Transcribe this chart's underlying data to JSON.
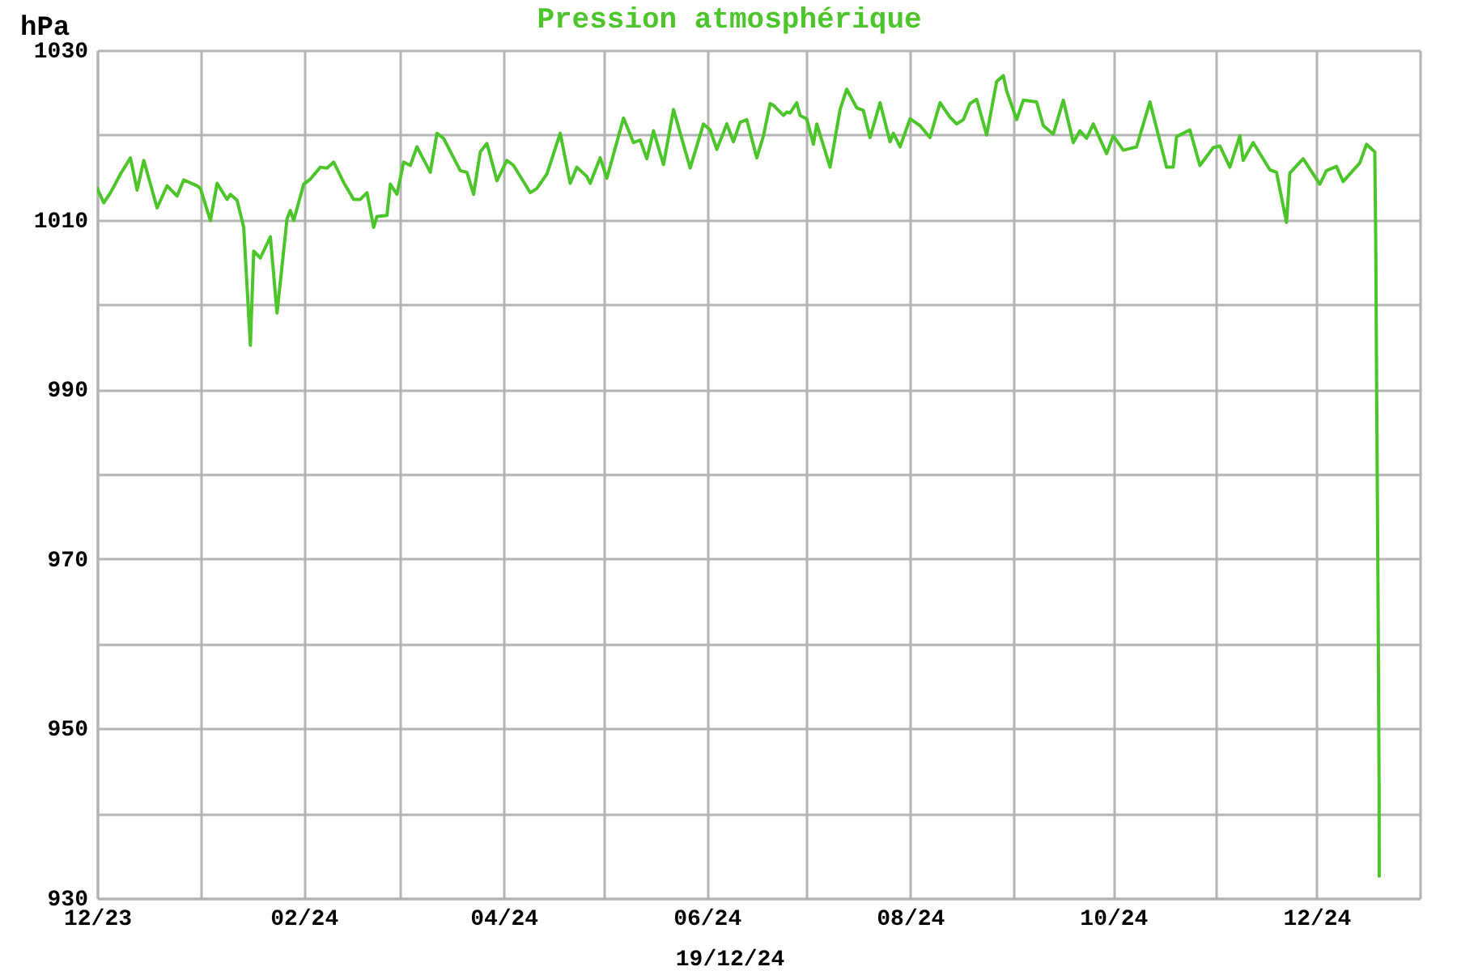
{
  "chart_data": {
    "type": "line",
    "title": "Pression atmosphérique",
    "ylabel": "hPa",
    "annotations": [
      "19/12/24"
    ],
    "x": [
      "2023-12-01",
      "2023-12-03",
      "2023-12-05",
      "2023-12-06",
      "2023-12-08",
      "2023-12-11",
      "2023-12-13",
      "2023-12-15",
      "2023-12-19",
      "2023-12-22",
      "2023-12-25",
      "2023-12-27",
      "2023-12-31",
      "2024-01-01",
      "2024-01-04",
      "2024-01-06",
      "2024-01-09",
      "2024-01-10",
      "2024-01-12",
      "2024-01-14",
      "2024-01-16",
      "2024-01-17",
      "2024-01-19",
      "2024-01-22",
      "2024-01-24",
      "2024-01-27",
      "2024-01-28",
      "2024-01-29",
      "2024-02-01",
      "2024-02-03",
      "2024-02-06",
      "2024-02-08",
      "2024-02-10",
      "2024-02-13",
      "2024-02-16",
      "2024-02-18",
      "2024-02-20",
      "2024-02-22",
      "2024-02-23",
      "2024-02-26",
      "2024-02-27",
      "2024-02-29",
      "2024-03-02",
      "2024-03-04",
      "2024-03-06",
      "2024-03-10",
      "2024-03-12",
      "2024-03-14",
      "2024-03-19",
      "2024-03-21",
      "2024-03-23",
      "2024-03-25",
      "2024-03-27",
      "2024-03-30",
      "2024-04-02",
      "2024-04-04",
      "2024-04-09",
      "2024-04-11",
      "2024-04-14",
      "2024-04-18",
      "2024-04-21",
      "2024-04-23",
      "2024-04-26",
      "2024-04-27",
      "2024-04-30",
      "2024-05-02",
      "2024-05-07",
      "2024-05-10",
      "2024-05-12",
      "2024-05-14",
      "2024-05-16",
      "2024-05-19",
      "2024-05-22",
      "2024-05-27",
      "2024-05-31",
      "2024-06-02",
      "2024-06-04",
      "2024-06-07",
      "2024-06-09",
      "2024-06-11",
      "2024-06-13",
      "2024-06-16",
      "2024-06-18",
      "2024-06-20",
      "2024-06-21",
      "2024-06-24",
      "2024-06-25",
      "2024-06-26",
      "2024-06-28",
      "2024-06-29",
      "2024-07-01",
      "2024-07-03",
      "2024-07-04",
      "2024-07-08",
      "2024-07-11",
      "2024-07-13",
      "2024-07-16",
      "2024-07-18",
      "2024-07-20",
      "2024-07-23",
      "2024-07-26",
      "2024-07-27",
      "2024-07-29",
      "2024-08-01",
      "2024-08-04",
      "2024-08-07",
      "2024-08-10",
      "2024-08-13",
      "2024-08-15",
      "2024-08-17",
      "2024-08-19",
      "2024-08-21",
      "2024-08-24",
      "2024-08-27",
      "2024-08-29",
      "2024-08-30",
      "2024-09-02",
      "2024-09-04",
      "2024-09-08",
      "2024-09-10",
      "2024-09-13",
      "2024-09-16",
      "2024-09-19",
      "2024-09-21",
      "2024-09-23",
      "2024-09-25",
      "2024-09-29",
      "2024-10-01",
      "2024-10-04",
      "2024-10-08",
      "2024-10-12",
      "2024-10-17",
      "2024-10-19",
      "2024-10-20",
      "2024-10-24",
      "2024-10-27",
      "2024-10-31",
      "2024-11-02",
      "2024-11-05",
      "2024-11-08",
      "2024-11-09",
      "2024-11-12",
      "2024-11-17",
      "2024-11-19",
      "2024-11-22",
      "2024-11-23",
      "2024-11-27",
      "2024-12-02",
      "2024-12-04",
      "2024-12-07",
      "2024-12-09",
      "2024-12-14",
      "2024-12-16",
      "2024-12-18T12:00",
      "2024-12-18T19:00",
      "2024-12-19T03:00",
      "2024-12-19T12:00",
      "2024-12-19T19:00",
      "2024-12-19T20:00"
    ],
    "series": [
      {
        "color": "#4cc52a",
        "values": [
          1013.7,
          1012.0,
          1013.2,
          1013.9,
          1015.4,
          1017.3,
          1013.5,
          1017.0,
          1011.4,
          1014.0,
          1012.8,
          1014.7,
          1014.0,
          1013.7,
          1009.9,
          1014.3,
          1012.4,
          1013.0,
          1012.3,
          1009.1,
          995.2,
          1006.3,
          1005.5,
          1008.0,
          999.0,
          1010.1,
          1011.1,
          1009.9,
          1014.2,
          1014.8,
          1016.2,
          1016.1,
          1016.8,
          1014.4,
          1012.4,
          1012.4,
          1013.2,
          1009.1,
          1010.4,
          1010.5,
          1014.2,
          1013.0,
          1016.8,
          1016.4,
          1018.6,
          1015.6,
          1020.2,
          1019.6,
          1015.8,
          1015.6,
          1013.0,
          1018.0,
          1019.0,
          1014.6,
          1017.0,
          1016.4,
          1013.2,
          1013.7,
          1015.4,
          1020.2,
          1014.3,
          1016.2,
          1015.1,
          1014.3,
          1017.3,
          1014.9,
          1022.0,
          1019.1,
          1019.4,
          1017.2,
          1020.5,
          1016.5,
          1023.0,
          1016.1,
          1021.3,
          1020.6,
          1018.3,
          1021.3,
          1019.2,
          1021.5,
          1021.8,
          1017.3,
          1019.9,
          1023.7,
          1023.5,
          1022.3,
          1022.7,
          1022.6,
          1023.8,
          1022.3,
          1021.9,
          1018.9,
          1021.3,
          1016.2,
          1023.0,
          1025.4,
          1023.2,
          1022.9,
          1019.7,
          1023.8,
          1019.2,
          1020.2,
          1018.6,
          1021.9,
          1021.1,
          1019.7,
          1023.8,
          1022.1,
          1021.3,
          1021.8,
          1023.7,
          1024.2,
          1020.0,
          1026.3,
          1027.0,
          1025.2,
          1021.8,
          1024.1,
          1023.9,
          1021.1,
          1020.1,
          1024.1,
          1019.1,
          1020.5,
          1019.6,
          1021.3,
          1017.8,
          1019.9,
          1018.2,
          1018.6,
          1023.9,
          1016.2,
          1016.2,
          1019.8,
          1020.6,
          1016.4,
          1018.5,
          1018.7,
          1016.2,
          1019.9,
          1017.0,
          1019.1,
          1015.9,
          1015.6,
          1009.7,
          1015.5,
          1017.2,
          1014.2,
          1015.8,
          1016.3,
          1014.5,
          1016.7,
          1018.9,
          1018.0,
          1007.2,
          986.0,
          964.6,
          943.1,
          932.6
        ]
      }
    ],
    "xlim": [
      "2023-12-01",
      "2025-01-01"
    ],
    "xticks": [
      {
        "value": "2023-12-01",
        "label": "12/23"
      },
      {
        "value": "2024-01-01",
        "label": null
      },
      {
        "value": "2024-02-01",
        "label": "02/24"
      },
      {
        "value": "2024-03-01",
        "label": null
      },
      {
        "value": "2024-04-01",
        "label": "04/24"
      },
      {
        "value": "2024-05-01",
        "label": null
      },
      {
        "value": "2024-06-01",
        "label": "06/24"
      },
      {
        "value": "2024-07-01",
        "label": null
      },
      {
        "value": "2024-08-01",
        "label": "08/24"
      },
      {
        "value": "2024-09-01",
        "label": null
      },
      {
        "value": "2024-10-01",
        "label": "10/24"
      },
      {
        "value": "2024-11-01",
        "label": null
      },
      {
        "value": "2024-12-01",
        "label": "12/24"
      },
      {
        "value": "2025-01-01",
        "label": null
      }
    ],
    "ylim": [
      930,
      1030
    ],
    "yticks": [
      930,
      {
        "value": 940,
        "label": null
      },
      950,
      {
        "value": 960,
        "label": null
      },
      970,
      {
        "value": 980,
        "label": null
      },
      990,
      {
        "value": 1000,
        "label": null
      },
      1010,
      {
        "value": 1020,
        "label": null
      },
      1030
    ],
    "grid": true
  }
}
